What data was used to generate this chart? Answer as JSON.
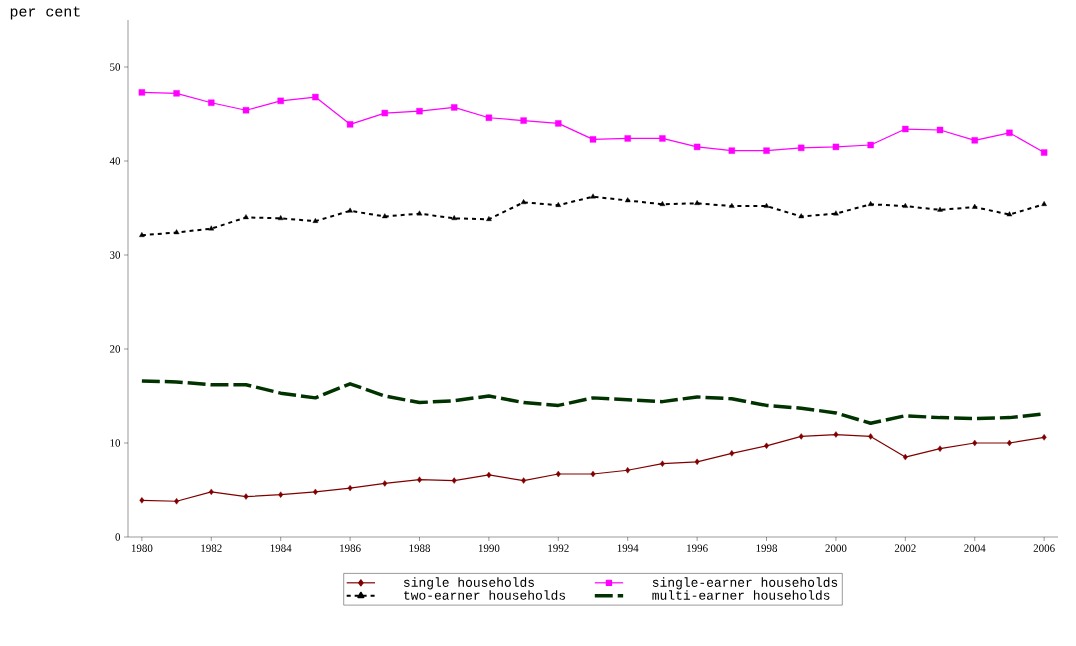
{
  "chart_data": {
    "type": "line",
    "ylabel": "per cent",
    "x": [
      1980,
      1981,
      1982,
      1983,
      1984,
      1985,
      1986,
      1987,
      1988,
      1989,
      1990,
      1991,
      1992,
      1993,
      1994,
      1995,
      1996,
      1997,
      1998,
      1999,
      2000,
      2001,
      2002,
      2003,
      2004,
      2005,
      2006
    ],
    "series": [
      {
        "name": "single households",
        "color": "#800000",
        "marker": "diamond",
        "line_style": "solid",
        "values": [
          3.9,
          3.8,
          4.8,
          4.3,
          4.5,
          4.8,
          5.2,
          5.7,
          6.1,
          6.0,
          6.6,
          6.0,
          6.7,
          6.7,
          7.1,
          7.8,
          8.0,
          8.9,
          9.7,
          10.7,
          10.9,
          10.7,
          8.5,
          9.4,
          10.0,
          10.0,
          10.6
        ]
      },
      {
        "name": "single-earner households",
        "color": "#ff00ff",
        "marker": "square",
        "line_style": "solid",
        "values": [
          47.3,
          47.2,
          46.2,
          45.4,
          46.4,
          46.8,
          43.9,
          45.1,
          45.3,
          45.7,
          44.6,
          44.3,
          44.0,
          42.3,
          42.4,
          42.4,
          41.5,
          41.1,
          41.1,
          41.4,
          41.5,
          41.7,
          43.4,
          43.3,
          42.2,
          43.0,
          40.9
        ]
      },
      {
        "name": "two-earner households",
        "color": "#000000",
        "marker": "triangle",
        "line_style": "dashed",
        "values": [
          32.1,
          32.4,
          32.8,
          34.0,
          33.9,
          33.6,
          34.7,
          34.1,
          34.4,
          33.9,
          33.8,
          35.6,
          35.3,
          36.2,
          35.8,
          35.4,
          35.5,
          35.2,
          35.2,
          34.1,
          34.4,
          35.4,
          35.2,
          34.8,
          35.1,
          34.3,
          35.4
        ]
      },
      {
        "name": "multi-earner households",
        "color": "#003300",
        "marker": "none",
        "line_style": "dashed",
        "values": [
          16.6,
          16.5,
          16.2,
          16.2,
          15.3,
          14.8,
          16.3,
          15.0,
          14.3,
          14.5,
          15.0,
          14.3,
          14.0,
          14.8,
          14.6,
          14.4,
          14.9,
          14.7,
          14.0,
          13.7,
          13.2,
          12.1,
          12.9,
          12.7,
          12.6,
          12.7,
          13.1
        ]
      }
    ],
    "xlim": [
      1979.6,
      2006.4
    ],
    "xticks": [
      1980,
      1982,
      1984,
      1986,
      1988,
      1990,
      1992,
      1994,
      1996,
      1998,
      2000,
      2002,
      2004,
      2006
    ],
    "ylim": [
      0,
      55
    ],
    "yticks": [
      0,
      10,
      20,
      30,
      40,
      50
    ],
    "grid": false,
    "legend": "bottom"
  }
}
